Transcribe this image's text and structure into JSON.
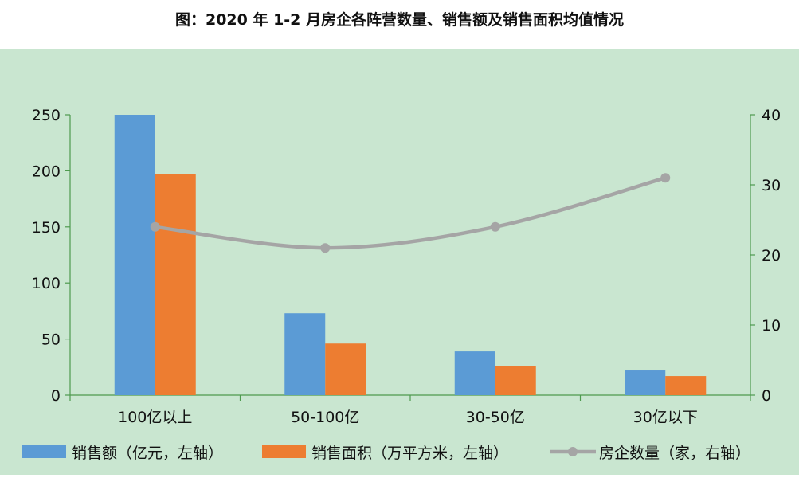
{
  "title": "图：2020 年 1-2 月房企各阵营数量、销售额及销售面积均值情况",
  "chart_data": {
    "type": "bar",
    "categories": [
      "100亿以上",
      "50-100亿",
      "30-50亿",
      "30亿以下"
    ],
    "series": [
      {
        "name": "销售额（亿元，左轴）",
        "type": "bar",
        "axis": "left",
        "color": "#5b9bd5",
        "values": [
          250,
          73,
          39,
          22
        ]
      },
      {
        "name": "销售面积（万平方米，左轴）",
        "type": "bar",
        "axis": "left",
        "color": "#ed7d31",
        "values": [
          197,
          46,
          26,
          17
        ]
      },
      {
        "name": "房企数量（家，右轴）",
        "type": "line",
        "axis": "right",
        "color": "#a5a5a5",
        "values": [
          24,
          21,
          24,
          31
        ]
      }
    ],
    "y_left": {
      "min": 0,
      "max": 250,
      "ticks": [
        0,
        50,
        100,
        150,
        200,
        250
      ]
    },
    "y_right": {
      "min": 0,
      "max": 40,
      "ticks": [
        0,
        10,
        20,
        30,
        40
      ]
    },
    "background": "#c9e6d0",
    "axis_color": "#4e9a4e",
    "legend_position": "bottom",
    "grid": false
  }
}
